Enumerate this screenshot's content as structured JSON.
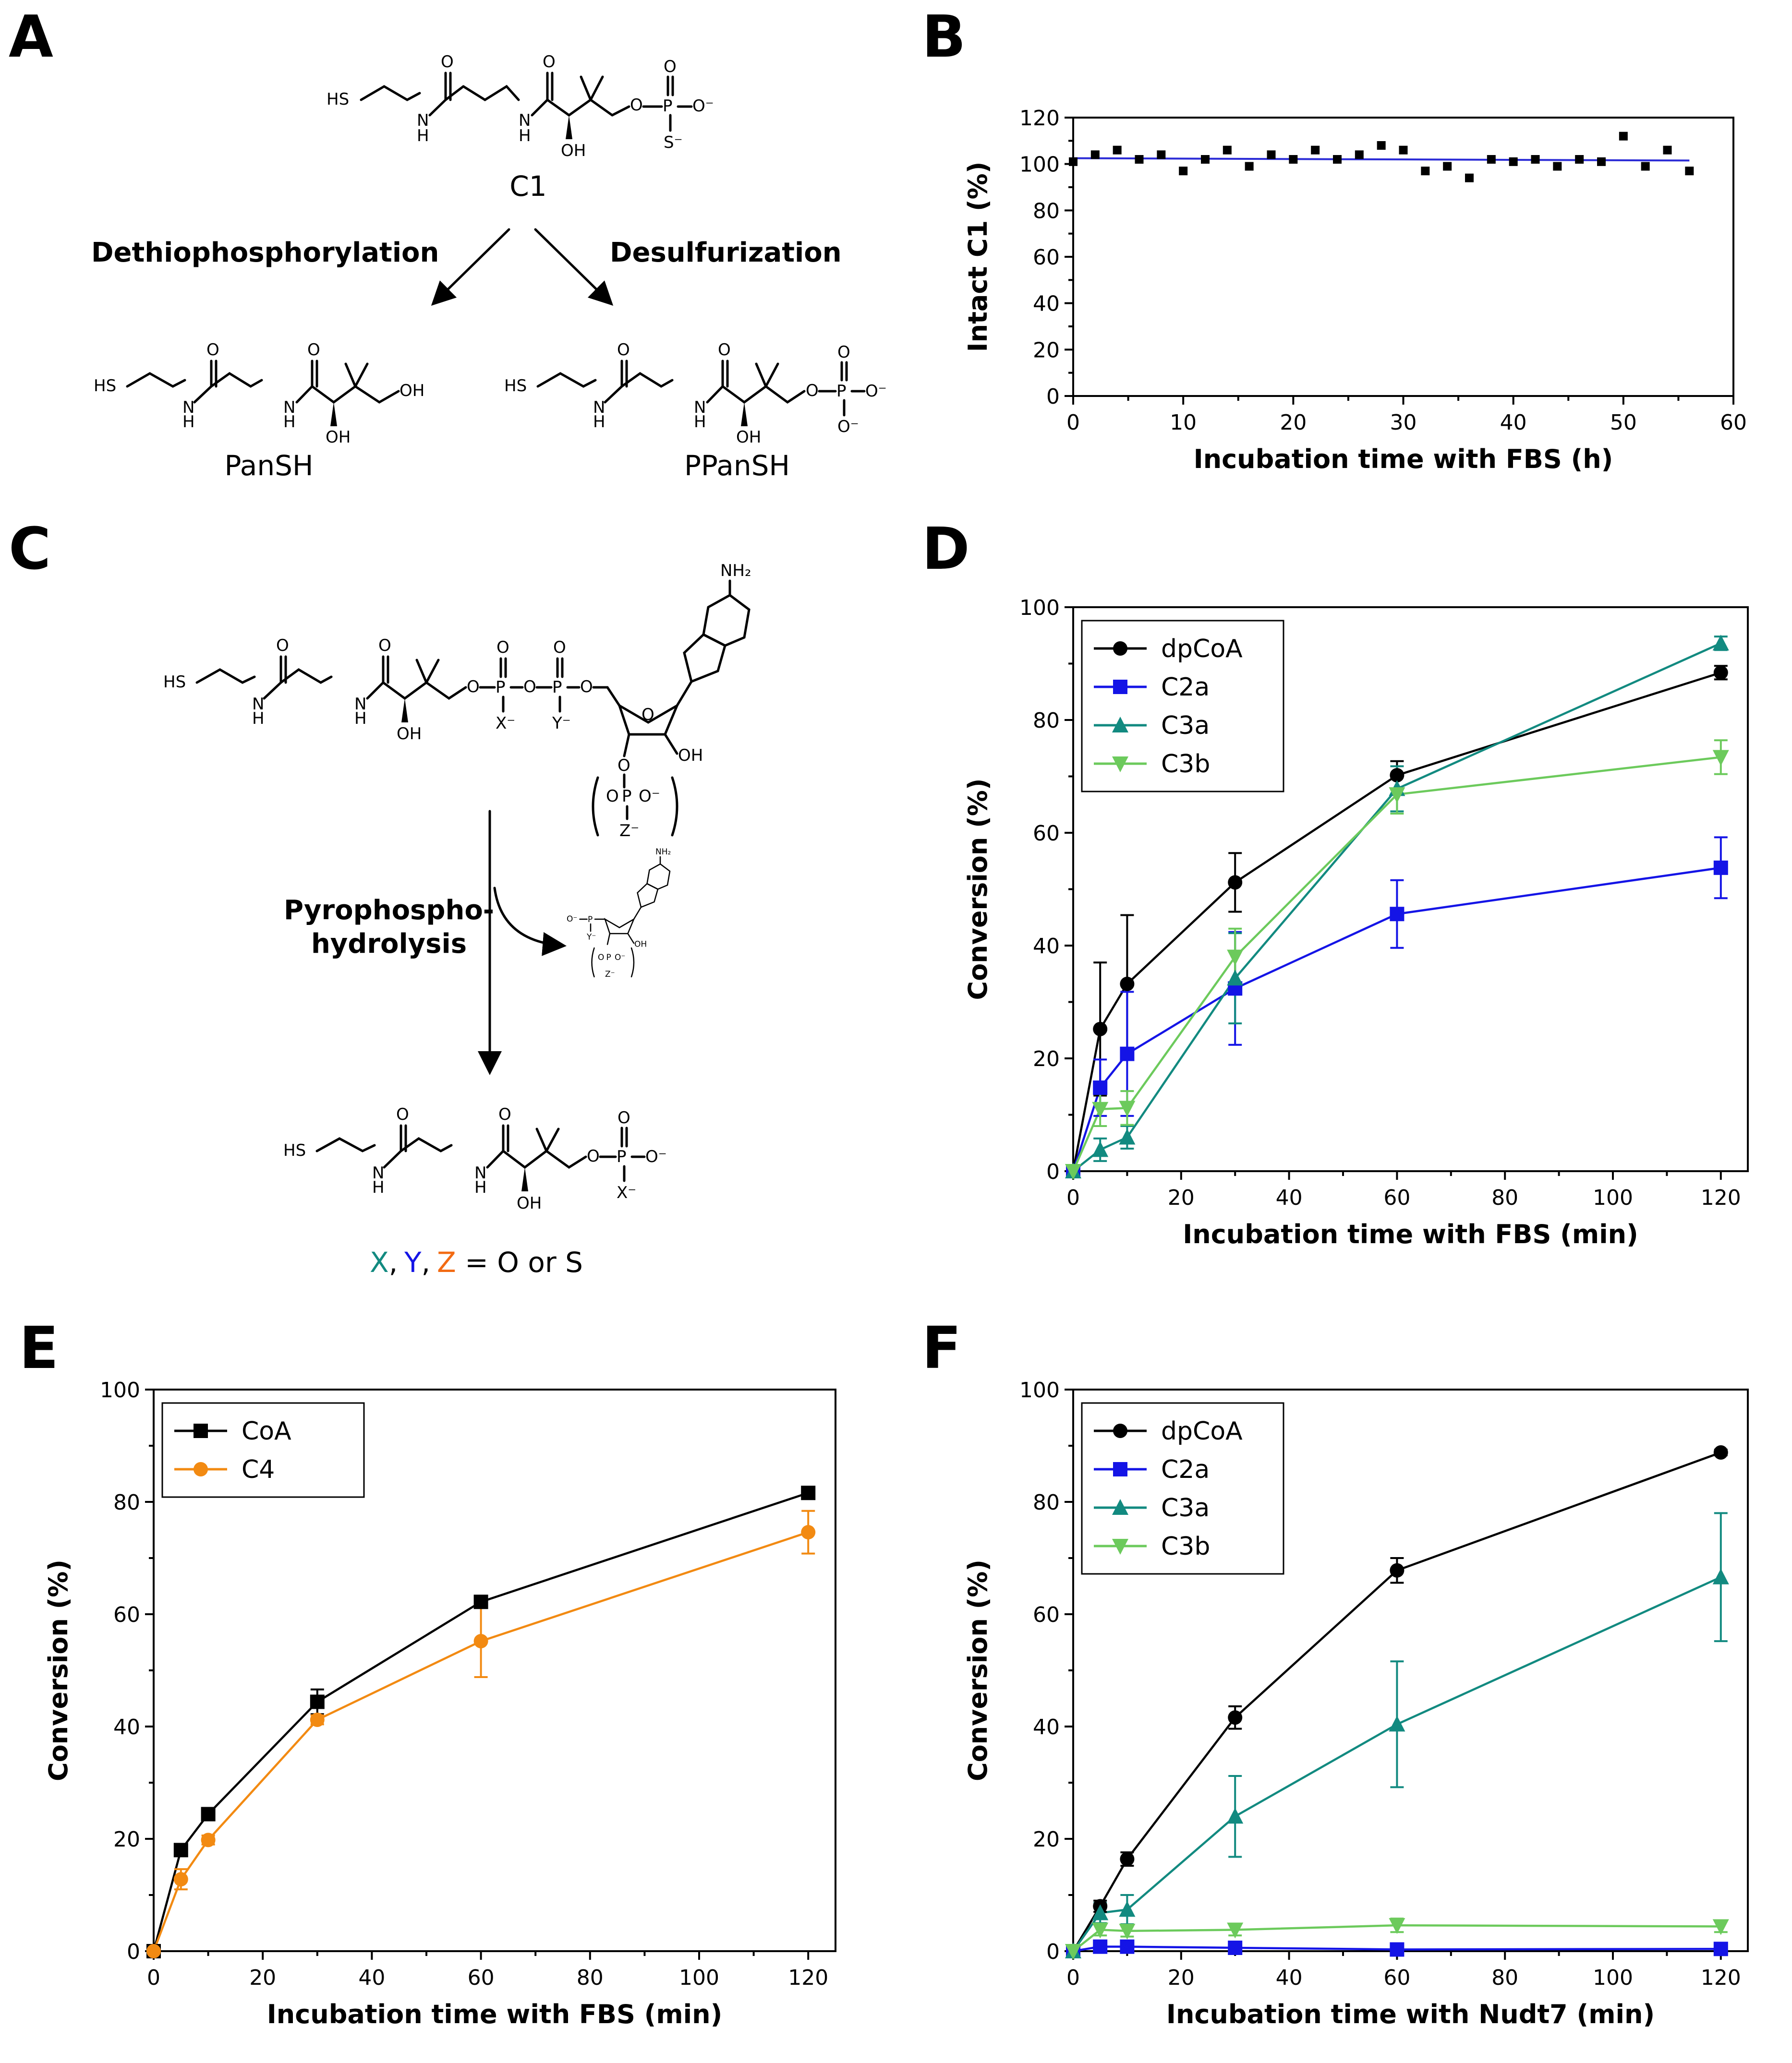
{
  "panels": {
    "A": {
      "label": "A",
      "compound_top": "C1",
      "route_left": "Dethiophosphorylation",
      "route_right": "Desulfurization",
      "product_left": "PanSH",
      "product_right": "PPanSH",
      "atoms": {
        "SH": "HS",
        "N": "N",
        "H": "H",
        "O": "O",
        "OH": "OH",
        "P": "P",
        "Ominus": "O⁻",
        "Sminus": "S⁻"
      }
    },
    "B": {
      "label": "B"
    },
    "C": {
      "label": "C",
      "step": [
        "Pyrophospho-",
        "hydrolysis"
      ],
      "nh2": "NH₂",
      "x": "X⁻",
      "y": "Y⁻",
      "z": "Z⁻",
      "legend": {
        "x": "X",
        "sep1": ",",
        "y": "Y",
        "sep2": ",",
        "z": "Z",
        "rest": " = O or S"
      }
    },
    "D": {
      "label": "D"
    },
    "E": {
      "label": "E"
    },
    "F": {
      "label": "F"
    }
  },
  "colors": {
    "black": "#000000",
    "blue": "#1414e6",
    "teal": "#128a80",
    "lightgreen": "#6cca5c",
    "orange": "#f28a12"
  },
  "chart_data": [
    {
      "id": "B",
      "type": "scatter",
      "xlabel": "Incubation time with FBS (h)",
      "ylabel": "Intact C1 (%)",
      "xlim": [
        0,
        60
      ],
      "ylim": [
        0,
        120
      ],
      "xticks": [
        0,
        10,
        20,
        30,
        40,
        50,
        60
      ],
      "yticks": [
        0,
        20,
        40,
        60,
        80,
        100,
        120
      ],
      "fit_line": {
        "x": [
          0,
          56
        ],
        "y": [
          102.5,
          101.5
        ],
        "color": "#2b2bd6"
      },
      "series": [
        {
          "name": "C1",
          "x": [
            0,
            2,
            4,
            6,
            8,
            10,
            12,
            14,
            16,
            18,
            20,
            22,
            24,
            26,
            28,
            30,
            32,
            34,
            36,
            38,
            40,
            42,
            44,
            46,
            48,
            50,
            52,
            54,
            56
          ],
          "y": [
            101,
            104,
            106,
            102,
            104,
            97,
            102,
            106,
            99,
            104,
            102,
            106,
            102,
            104,
            108,
            106,
            97,
            99,
            94,
            102,
            101,
            102,
            99,
            102,
            101,
            112,
            99,
            106,
            97
          ]
        }
      ]
    },
    {
      "id": "D",
      "type": "line",
      "xlabel": "Incubation time with FBS (min)",
      "ylabel": "Conversion (%)",
      "xlim": [
        0,
        125
      ],
      "ylim": [
        0,
        100
      ],
      "xticks": [
        0,
        20,
        40,
        60,
        80,
        100,
        120
      ],
      "yticks": [
        0,
        20,
        40,
        60,
        80,
        100
      ],
      "x": [
        0,
        5,
        10,
        30,
        60,
        120
      ],
      "legend_position": "top-left",
      "series": [
        {
          "name": "dpCoA",
          "marker": "circle",
          "color": "#000000",
          "values": [
            0,
            25.2,
            33.2,
            51.2,
            70.2,
            88.4
          ],
          "err": [
            0,
            11.8,
            12.2,
            5.2,
            2.5,
            1.2
          ]
        },
        {
          "name": "C2a",
          "marker": "square",
          "color": "#1414e6",
          "values": [
            0,
            14.8,
            20.8,
            32.4,
            45.6,
            53.8
          ],
          "err": [
            0,
            5,
            11,
            10,
            6,
            5.4
          ]
        },
        {
          "name": "C3a",
          "marker": "triangle-up",
          "color": "#128a80",
          "values": [
            0,
            3.8,
            6.0,
            34.2,
            67.8,
            93.6
          ],
          "err": [
            0,
            2,
            2,
            8,
            4,
            1.2
          ]
        },
        {
          "name": "C3b",
          "marker": "triangle-down",
          "color": "#6cca5c",
          "values": [
            0,
            11.0,
            11.2,
            38.0,
            66.8,
            73.4
          ],
          "err": [
            0,
            3,
            3,
            5,
            3.4,
            3
          ]
        }
      ]
    },
    {
      "id": "E",
      "type": "line",
      "xlabel": "Incubation time with FBS (min)",
      "ylabel": "Conversion (%)",
      "xlim": [
        0,
        125
      ],
      "ylim": [
        0,
        100
      ],
      "xticks": [
        0,
        20,
        40,
        60,
        80,
        100,
        120
      ],
      "yticks": [
        0,
        20,
        40,
        60,
        80,
        100
      ],
      "x": [
        0,
        5,
        10,
        30,
        60,
        120
      ],
      "legend_position": "top-left",
      "series": [
        {
          "name": "CoA",
          "marker": "square",
          "color": "#000000",
          "values": [
            0,
            18.0,
            24.4,
            44.4,
            62.2,
            81.6
          ],
          "err": [
            0,
            0.6,
            0.6,
            2.2,
            0.6,
            0.6
          ]
        },
        {
          "name": "C4",
          "marker": "circle",
          "color": "#f28a12",
          "values": [
            0,
            12.8,
            19.8,
            41.2,
            55.2,
            74.6
          ],
          "err": [
            0,
            1.8,
            0.8,
            0.8,
            6.4,
            3.8
          ]
        }
      ]
    },
    {
      "id": "F",
      "type": "line",
      "xlabel": "Incubation time with Nudt7 (min)",
      "ylabel": "Conversion (%)",
      "xlim": [
        0,
        125
      ],
      "ylim": [
        0,
        100
      ],
      "xticks": [
        0,
        20,
        40,
        60,
        80,
        100,
        120
      ],
      "yticks": [
        0,
        20,
        40,
        60,
        80,
        100
      ],
      "x": [
        0,
        5,
        10,
        30,
        60,
        120
      ],
      "legend_position": "top-left",
      "series": [
        {
          "name": "dpCoA",
          "marker": "circle",
          "color": "#000000",
          "values": [
            0,
            8.0,
            16.4,
            41.6,
            67.8,
            88.8
          ],
          "err": [
            0,
            1.0,
            1.2,
            2.0,
            2.2,
            0.5
          ]
        },
        {
          "name": "C2a",
          "marker": "square",
          "color": "#1414e6",
          "values": [
            0,
            0.8,
            0.8,
            0.6,
            0.3,
            0.4
          ],
          "err": [
            0,
            0.3,
            0.3,
            0.3,
            0.3,
            0.3
          ]
        },
        {
          "name": "C3a",
          "marker": "triangle-up",
          "color": "#128a80",
          "values": [
            0,
            6.8,
            7.4,
            24.0,
            40.4,
            66.6
          ],
          "err": [
            0,
            1.8,
            2.6,
            7.2,
            11.2,
            11.4
          ]
        },
        {
          "name": "C3b",
          "marker": "triangle-down",
          "color": "#6cca5c",
          "values": [
            0,
            3.8,
            3.6,
            3.8,
            4.6,
            4.4
          ],
          "err": [
            0,
            1.0,
            1.0,
            1.0,
            1.2,
            1.0
          ]
        }
      ]
    }
  ]
}
